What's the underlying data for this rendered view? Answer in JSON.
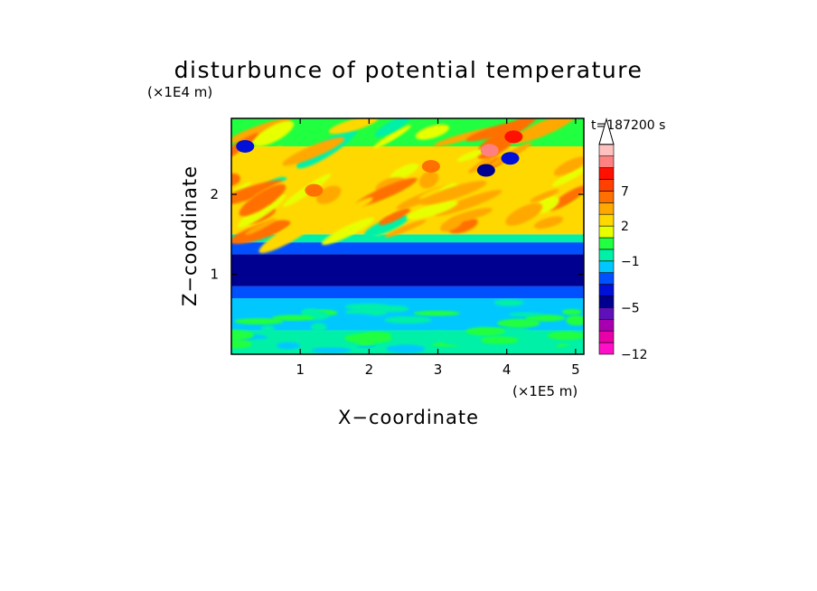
{
  "chart_data": {
    "type": "heatmap",
    "title": "disturbunce of potential temperature",
    "time_label": "t=187200 s",
    "xlabel": "X−coordinate",
    "ylabel": "Z−coordinate",
    "x_unit": "(×1E5 m)",
    "y_unit": "(×1E4 m)",
    "xlim": [
      0,
      5.12
    ],
    "ylim": [
      0,
      2.95
    ],
    "x_ticks": [
      {
        "value": 1,
        "label": "1"
      },
      {
        "value": 2,
        "label": "2"
      },
      {
        "value": 3,
        "label": "3"
      },
      {
        "value": 4,
        "label": "4"
      },
      {
        "value": 5,
        "label": "5"
      }
    ],
    "y_ticks": [
      {
        "value": 1,
        "label": "1"
      },
      {
        "value": 2,
        "label": "2"
      }
    ],
    "colorbar": {
      "levels": [
        "#ff10c8",
        "#e800a8",
        "#a800b0",
        "#6010b8",
        "#000090",
        "#0010d8",
        "#0050ff",
        "#00c8ff",
        "#00f0a8",
        "#20ff40",
        "#e8ff00",
        "#ffd800",
        "#ffa800",
        "#ff7000",
        "#ff4000",
        "#ff1000",
        "#ff8080",
        "#ffc0c0"
      ],
      "extend": "max",
      "tick_labels": [
        {
          "label": "−12",
          "level_boundary": 0
        },
        {
          "label": "−5",
          "level_boundary": 4
        },
        {
          "label": "−1",
          "level_boundary": 8
        },
        {
          "label": "2",
          "level_boundary": 11
        },
        {
          "label": "7",
          "level_boundary": 14
        }
      ]
    },
    "field": {
      "description_bands": [
        {
          "z": [
            0.0,
            0.3
          ],
          "level_index": 8
        },
        {
          "z": [
            0.3,
            0.7
          ],
          "level_index": 7
        },
        {
          "z": [
            0.7,
            0.85
          ],
          "level_index": 6
        },
        {
          "z": [
            0.85,
            1.25
          ],
          "level_index": 4
        },
        {
          "z": [
            1.25,
            1.4
          ],
          "level_index": 6
        },
        {
          "z": [
            1.4,
            1.5
          ],
          "level_index": 8
        },
        {
          "z": [
            1.5,
            2.6
          ],
          "level_index": 11
        },
        {
          "z": [
            2.6,
            2.95
          ],
          "level_index": 9
        }
      ],
      "features": [
        {
          "x": 3.75,
          "z": 2.55,
          "level_index": 16
        },
        {
          "x": 3.7,
          "z": 2.3,
          "level_index": 4
        },
        {
          "x": 4.05,
          "z": 2.45,
          "level_index": 5
        },
        {
          "x": 4.1,
          "z": 2.72,
          "level_index": 15
        },
        {
          "x": 2.9,
          "z": 2.35,
          "level_index": 13
        },
        {
          "x": 1.2,
          "z": 2.05,
          "level_index": 13
        },
        {
          "x": 0.2,
          "z": 2.6,
          "level_index": 5
        }
      ]
    }
  }
}
